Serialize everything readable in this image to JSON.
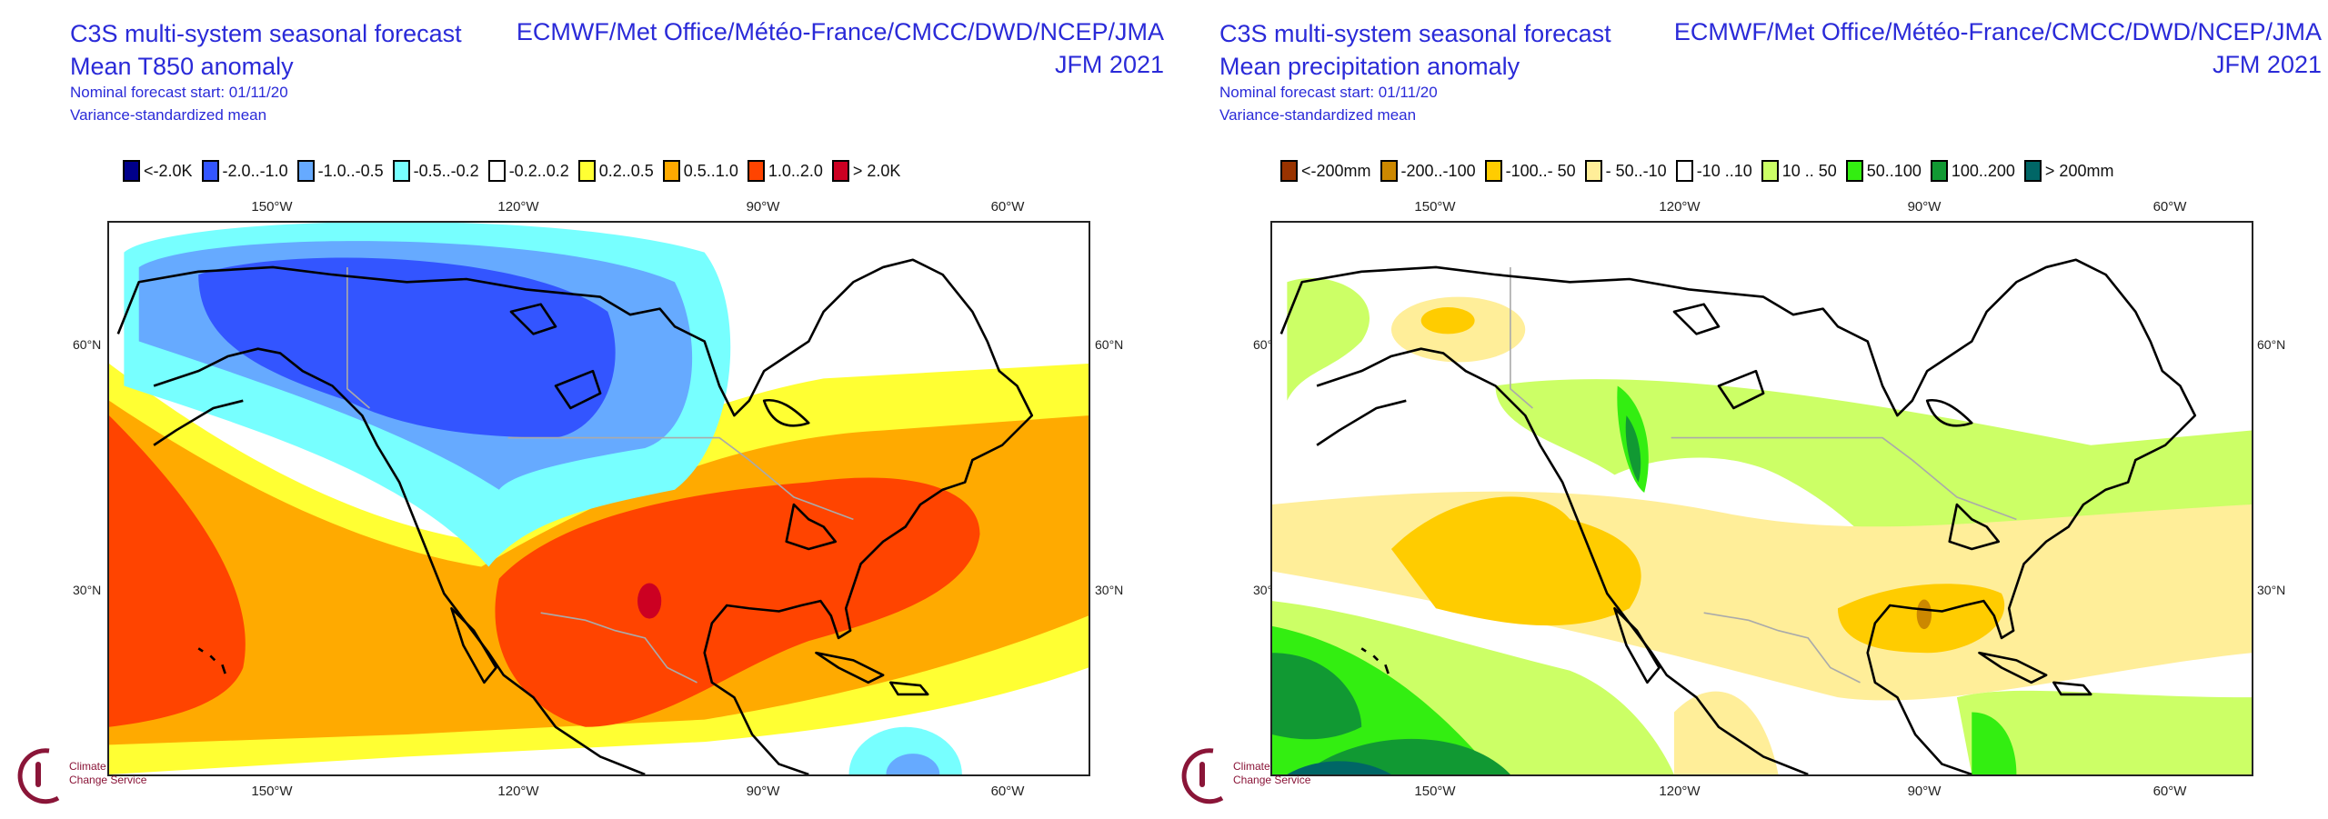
{
  "panels": [
    {
      "title": "C3S multi-system seasonal forecast",
      "subtitle": "Mean T850 anomaly",
      "forecast_start": "Nominal forecast start: 01/11/20",
      "method": "Variance-standardized mean",
      "providers": "ECMWF/Met Office/Météo-France/CMCC/DWD/NCEP/JMA",
      "period": "JFM 2021",
      "legend": [
        {
          "label": "<-2.0K",
          "color": "#00008b"
        },
        {
          "label": "-2.0..-1.0",
          "color": "#3355ff"
        },
        {
          "label": "-1.0..-0.5",
          "color": "#66aaff"
        },
        {
          "label": "-0.5..-0.2",
          "color": "#77ffff"
        },
        {
          "label": "-0.2..0.2",
          "color": "#ffffff"
        },
        {
          "label": "0.2..0.5",
          "color": "#ffff33"
        },
        {
          "label": "0.5..1.0",
          "color": "#ffaa00"
        },
        {
          "label": "1.0..2.0",
          "color": "#ff4400"
        },
        {
          "label": "> 2.0K",
          "color": "#cc0022"
        }
      ]
    },
    {
      "title": "C3S multi-system seasonal forecast",
      "subtitle": "Mean precipitation anomaly",
      "forecast_start": "Nominal forecast start: 01/11/20",
      "method": "Variance-standardized mean",
      "providers": "ECMWF/Met Office/Météo-France/CMCC/DWD/NCEP/JMA",
      "period": "JFM 2021",
      "legend": [
        {
          "label": "<-200mm",
          "color": "#993300"
        },
        {
          "label": "-200..-100",
          "color": "#cc8800"
        },
        {
          "label": "-100..- 50",
          "color": "#ffcc00"
        },
        {
          "label": "- 50..-10",
          "color": "#ffee99"
        },
        {
          "label": "-10 ..10",
          "color": "#ffffff"
        },
        {
          "label": "10 .. 50",
          "color": "#ccff66"
        },
        {
          "label": "50..100",
          "color": "#33ee11"
        },
        {
          "label": "100..200",
          "color": "#119933"
        },
        {
          "label": "> 200mm",
          "color": "#006666"
        }
      ]
    }
  ],
  "axes": {
    "lon_ticks": [
      "150°W",
      "120°W",
      "90°W",
      "60°W"
    ],
    "lat_ticks": [
      "60°N",
      "30°N"
    ]
  },
  "logo": {
    "line1": "Climate",
    "line2": "Change Service"
  }
}
